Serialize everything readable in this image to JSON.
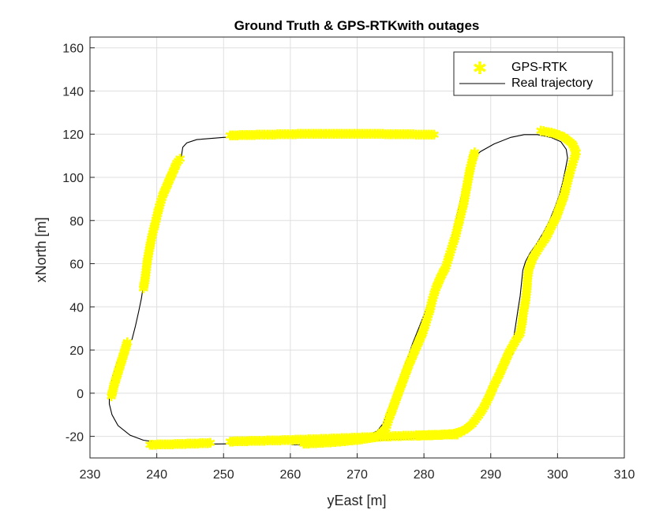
{
  "chart_data": {
    "type": "line",
    "title": "Ground Truth & GPS-RTKwith outages",
    "xlabel": "yEast [m]",
    "ylabel": "xNorth [m]",
    "xlim": [
      230,
      310
    ],
    "ylim": [
      -30,
      165
    ],
    "xticks": [
      230,
      240,
      250,
      260,
      270,
      280,
      290,
      300,
      310
    ],
    "yticks": [
      -20,
      0,
      20,
      40,
      60,
      80,
      100,
      120,
      140,
      160
    ],
    "grid": true,
    "legend_position": "top-right",
    "colors": {
      "gps": "#ffff00",
      "truth": "#000000"
    },
    "series": [
      {
        "name": "GPS-RTK",
        "marker": "asterisk",
        "color": "#ffff00",
        "segments": [
          [
            [
              251,
              118.8
            ],
            [
              255,
              119.1
            ],
            [
              260,
              119.4
            ],
            [
              265,
              119.6
            ],
            [
              270,
              119.6
            ],
            [
              275,
              119.4
            ],
            [
              278,
              119.3
            ],
            [
              280,
              119.2
            ],
            [
              281.5,
              119.2
            ]
          ],
          [
            [
              243.5,
              108
            ],
            [
              243,
              106
            ],
            [
              242.3,
              101
            ],
            [
              241.6,
              96
            ],
            [
              240.9,
              91
            ],
            [
              240.4,
              86
            ],
            [
              240,
              81
            ],
            [
              239.6,
              76
            ],
            [
              239.2,
              71
            ],
            [
              238.9,
              66
            ],
            [
              238.6,
              61
            ],
            [
              238.4,
              56
            ],
            [
              238.2,
              51
            ],
            [
              238,
              48
            ]
          ],
          [
            [
              235.6,
              23
            ],
            [
              235.2,
              19
            ],
            [
              234.8,
              15
            ],
            [
              234.4,
              11
            ],
            [
              234,
              7
            ],
            [
              233.6,
              3
            ],
            [
              233.3,
              -1
            ],
            [
              233.2,
              -2
            ]
          ],
          [
            [
              239,
              -24.5
            ],
            [
              242,
              -24.3
            ],
            [
              245,
              -24
            ],
            [
              248,
              -23.7
            ]
          ],
          [
            [
              251,
              -23
            ],
            [
              255,
              -22.7
            ],
            [
              260,
              -22.3
            ],
            [
              265,
              -21.8
            ],
            [
              270,
              -21.2
            ],
            [
              275,
              -20.6
            ],
            [
              280,
              -20.1
            ],
            [
              285,
              -19.7
            ]
          ],
          [
            [
              262,
              -24
            ],
            [
              266,
              -23.4
            ],
            [
              270,
              -22.3
            ],
            [
              273,
              -20.8
            ],
            [
              274.3,
              -17
            ],
            [
              274.8,
              -12
            ],
            [
              275.4,
              -7
            ],
            [
              276,
              -2
            ],
            [
              276.6,
              3
            ],
            [
              277.2,
              8
            ],
            [
              277.8,
              13
            ],
            [
              278.5,
              18
            ],
            [
              279.2,
              23
            ],
            [
              279.9,
              28
            ],
            [
              280.4,
              33
            ],
            [
              280.9,
              38
            ],
            [
              281.3,
              43
            ],
            [
              281.8,
              48
            ],
            [
              282.5,
              53
            ],
            [
              283.3,
              58
            ],
            [
              283.8,
              63
            ],
            [
              284.3,
              68
            ],
            [
              284.8,
              73
            ],
            [
              285.2,
              78
            ],
            [
              285.6,
              83
            ],
            [
              286,
              88
            ],
            [
              286.3,
              93
            ],
            [
              286.6,
              98
            ],
            [
              286.9,
              103
            ],
            [
              287.3,
              108
            ],
            [
              287.6,
              111
            ]
          ],
          [
            [
              297.5,
              121
            ],
            [
              299.5,
              119.8
            ],
            [
              301,
              118
            ],
            [
              302.2,
              115
            ],
            [
              302.8,
              111
            ],
            [
              302.3,
              106
            ],
            [
              301.8,
              101
            ],
            [
              301.4,
              96
            ],
            [
              301,
              91
            ],
            [
              300.4,
              86
            ],
            [
              299.8,
              81
            ],
            [
              299,
              76
            ],
            [
              298.2,
              71
            ],
            [
              297.3,
              67
            ],
            [
              296.3,
              62
            ],
            [
              295.7,
              57
            ],
            [
              295.5,
              52
            ],
            [
              295.4,
              47
            ],
            [
              295.2,
              42
            ],
            [
              294.9,
              37
            ],
            [
              294.7,
              32
            ],
            [
              294.4,
              27
            ],
            [
              293.6,
              23
            ],
            [
              292.7,
              18
            ],
            [
              292,
              13
            ],
            [
              291.3,
              8
            ],
            [
              290.5,
              3
            ],
            [
              289.8,
              -2
            ],
            [
              289,
              -7
            ],
            [
              288.2,
              -11
            ],
            [
              287.2,
              -15
            ],
            [
              286,
              -18
            ],
            [
              284.5,
              -19.5
            ],
            [
              282,
              -20
            ],
            [
              279,
              -20.3
            ]
          ]
        ]
      },
      {
        "name": "Real trajectory",
        "color": "#000000",
        "points": [
          [
            279,
            119.1
          ],
          [
            270,
            119.4
          ],
          [
            260,
            119.4
          ],
          [
            253,
            119
          ],
          [
            250,
            118.5
          ],
          [
            246,
            117.5
          ],
          [
            244.5,
            116
          ],
          [
            243.9,
            114
          ],
          [
            243.7,
            110
          ],
          [
            243.2,
            106
          ],
          [
            242.3,
            101
          ],
          [
            241.5,
            95
          ],
          [
            240.7,
            88
          ],
          [
            240,
            81
          ],
          [
            239.4,
            74
          ],
          [
            238.9,
            67
          ],
          [
            238.5,
            60
          ],
          [
            238.1,
            52
          ],
          [
            237.7,
            44
          ],
          [
            237.3,
            38
          ],
          [
            236.8,
            31
          ],
          [
            236.3,
            25
          ],
          [
            235.1,
            20
          ],
          [
            234,
            14
          ],
          [
            233.3,
            7
          ],
          [
            232.9,
            0
          ],
          [
            232.9,
            -5
          ],
          [
            233.3,
            -10
          ],
          [
            234.2,
            -15
          ],
          [
            236,
            -19.5
          ],
          [
            238,
            -21.8
          ],
          [
            241,
            -23.1
          ],
          [
            245,
            -23.6
          ],
          [
            250,
            -23.5
          ],
          [
            255,
            -23.2
          ],
          [
            260,
            -22.8
          ],
          [
            265,
            -22.2
          ],
          [
            269,
            -21.3
          ],
          [
            271.5,
            -19.8
          ],
          [
            273,
            -17.5
          ],
          [
            273.9,
            -14
          ],
          [
            274.5,
            -9
          ],
          [
            275.3,
            -3
          ],
          [
            276,
            3
          ],
          [
            276.7,
            9
          ],
          [
            277.5,
            16
          ],
          [
            278.3,
            23
          ],
          [
            279.2,
            30
          ],
          [
            280.1,
            37
          ],
          [
            281,
            44
          ],
          [
            282.2,
            52
          ],
          [
            283.2,
            60
          ],
          [
            283.9,
            68
          ],
          [
            284.5,
            76
          ],
          [
            285,
            83
          ],
          [
            285.5,
            90
          ],
          [
            286,
            97
          ],
          [
            286.5,
            103
          ],
          [
            287,
            107
          ],
          [
            287.5,
            109.5
          ],
          [
            288.5,
            112
          ],
          [
            290.5,
            115.5
          ],
          [
            293,
            118.5
          ],
          [
            295,
            119.8
          ],
          [
            297,
            119.8
          ],
          [
            299,
            118.5
          ],
          [
            300.5,
            116.5
          ],
          [
            301.3,
            113
          ],
          [
            301.5,
            109
          ],
          [
            301.2,
            104
          ],
          [
            300.8,
            98
          ],
          [
            300.3,
            92
          ],
          [
            299.6,
            86
          ],
          [
            298.8,
            80
          ],
          [
            297.8,
            74
          ],
          [
            296.8,
            69
          ],
          [
            295.9,
            65
          ],
          [
            295.2,
            61
          ],
          [
            294.8,
            57
          ],
          [
            294.6,
            51
          ],
          [
            294.4,
            45
          ],
          [
            294.1,
            39
          ],
          [
            293.8,
            33
          ],
          [
            293.5,
            27
          ],
          [
            293.3,
            21
          ],
          [
            293.3,
            18
          ]
        ],
        "points2": [
          [
            260.2,
            -23.9
          ],
          [
            265,
            -23.4
          ],
          [
            270,
            -22.6
          ],
          [
            273,
            -21.7
          ],
          [
            277,
            -21.2
          ],
          [
            280,
            -20.9
          ],
          [
            283,
            -20.4
          ],
          [
            285.5,
            -19
          ]
        ]
      }
    ]
  }
}
